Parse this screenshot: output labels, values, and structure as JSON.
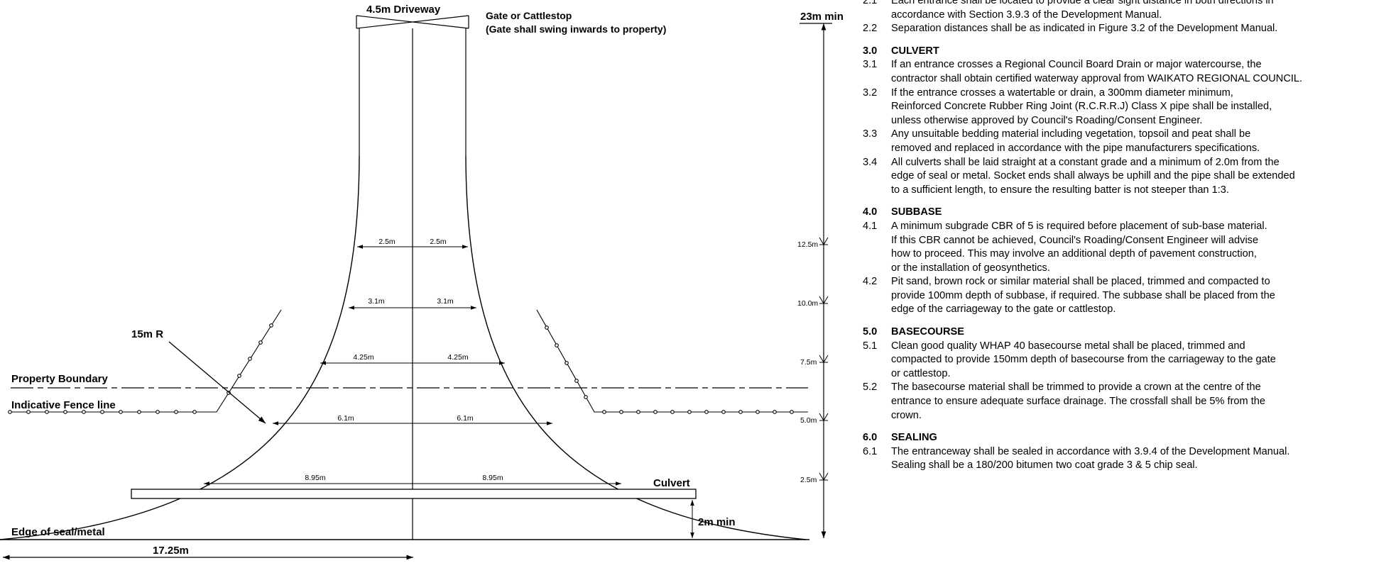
{
  "drawing": {
    "driveway_label": "4.5m Driveway",
    "gate_label_1": "Gate or Cattlestop",
    "gate_label_2": "(Gate shall swing inwards to property)",
    "min_label": "23m min",
    "radius_label": "15m R",
    "property_boundary": "Property Boundary",
    "fence_line": "Indicative Fence line",
    "edge_label": "Edge of seal/metal",
    "culvert_label": "Culvert",
    "culvert_min": "2m min",
    "total_width": "17.25m",
    "widths": [
      {
        "half": "2.5m",
        "chainage": "12.5m"
      },
      {
        "half": "3.1m",
        "chainage": "10.0m"
      },
      {
        "half": "4.25m",
        "chainage": "7.5m"
      },
      {
        "half": "6.1m",
        "chainage": "5.0m"
      },
      {
        "half": "8.95m",
        "chainage": "2.5m"
      }
    ]
  },
  "notes": [
    {
      "num": "2.1",
      "text": "Each entrance shall be located to provide a clear sight distance in both directions in\naccordance with Section 3.9.3 of the Development Manual."
    },
    {
      "num": "2.2",
      "text": "Separation distances shall be as indicated in Figure 3.2 of the Development Manual."
    },
    {
      "gap": true
    },
    {
      "num": "3.0",
      "text": "CULVERT",
      "head": true
    },
    {
      "num": "3.1",
      "text": "If an entrance crosses a Regional Council Board Drain or major watercourse, the\ncontractor shall obtain certified waterway approval from WAIKATO REGIONAL COUNCIL."
    },
    {
      "num": "3.2",
      "text": "If the entrance crosses a watertable or drain, a 300mm diameter minimum,\nReinforced Concrete Rubber Ring Joint (R.C.R.R.J) Class X pipe shall be installed,\nunless otherwise approved by Council's Roading/Consent Engineer."
    },
    {
      "num": "3.3",
      "text": "Any unsuitable bedding material including vegetation, topsoil and peat shall be\nremoved and replaced in accordance with the pipe manufacturers specifications."
    },
    {
      "num": "3.4",
      "text": "All culverts shall be laid straight at a constant grade and a minimum of 2.0m from the\nedge of seal or metal.  Socket ends shall always be uphill and the pipe shall be extended\nto a sufficient length, to ensure the resulting batter is not steeper than 1:3."
    },
    {
      "gap": true
    },
    {
      "num": "4.0",
      "text": "SUBBASE",
      "head": true
    },
    {
      "num": "4.1",
      "text": "A minimum subgrade CBR of 5 is required before placement of sub-base material.\nIf this CBR cannot be achieved, Council's Roading/Consent Engineer will  advise\nhow to proceed.  This may involve an additional depth of pavement construction,\nor the installation of geosynthetics."
    },
    {
      "num": "4.2",
      "text": "Pit sand, brown rock or similar material shall be placed, trimmed and compacted to\nprovide 100mm depth of subbase, if required.  The subbase shall be placed from the\nedge of the carriageway to the gate or cattlestop."
    },
    {
      "gap": true
    },
    {
      "num": "5.0",
      "text": "BASECOURSE",
      "head": true
    },
    {
      "num": "5.1",
      "text": "Clean good quality WHAP 40 basecourse metal shall be placed, trimmed and\ncompacted to provide 150mm depth of basecourse from the carriageway to the gate\nor cattlestop."
    },
    {
      "num": "5.2",
      "text": "The basecourse material shall be trimmed to provide a crown at the centre of the\nentrance to ensure adequate surface drainage.  The crossfall shall be 5% from the\ncrown."
    },
    {
      "gap": true
    },
    {
      "num": "6.0",
      "text": "SEALING",
      "head": true
    },
    {
      "num": "6.1",
      "text": "The entranceway shall be sealed in accordance with 3.9.4 of the Development Manual.\nSealing shall be a 180/200 bitumen two coat grade 3 & 5 chip seal."
    }
  ]
}
